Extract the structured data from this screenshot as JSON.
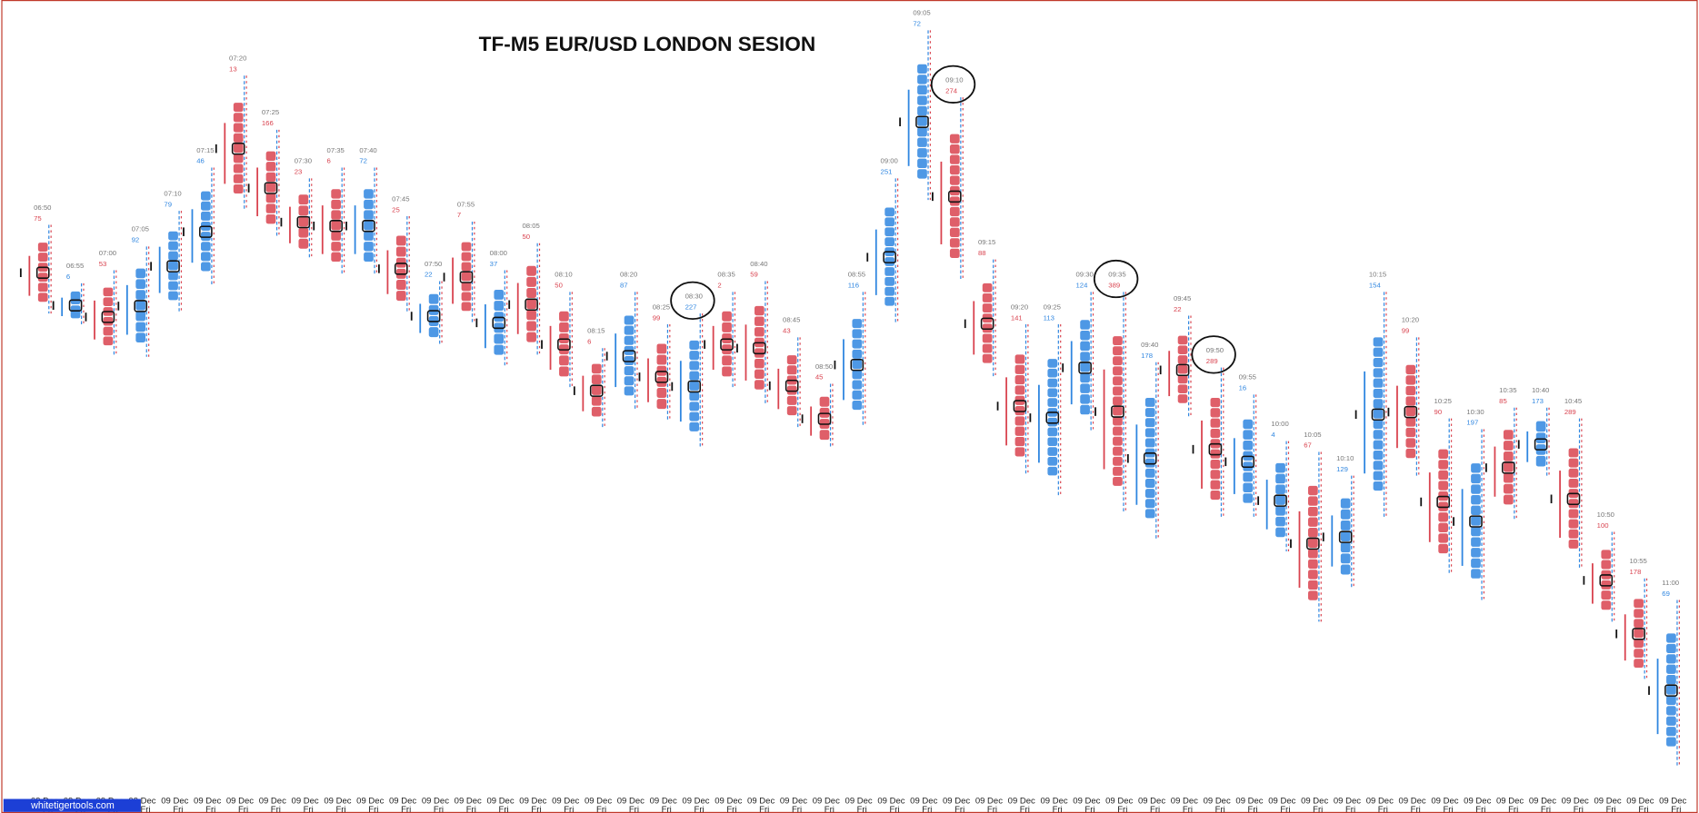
{
  "chart_data": {
    "type": "footprint",
    "title": "TF-M5 EUR/USD LONDON SESION",
    "watermark": "whitetigertools.com",
    "ylim": [
      0,
      720
    ],
    "bars": [
      {
        "time": "06:50",
        "delta": 75,
        "color": "#d9434f",
        "high": 512,
        "low": 430,
        "date": "09 Dec",
        "day": "Fri"
      },
      {
        "time": "06:55",
        "delta": 6,
        "color": "#2f86e0",
        "high": 458,
        "low": 420,
        "date": "09 Dec",
        "day": "Fri"
      },
      {
        "time": "07:00",
        "delta": 53,
        "color": "#d9434f",
        "high": 470,
        "low": 390,
        "date": "09 Dec",
        "day": "Fri"
      },
      {
        "time": "07:05",
        "delta": 92,
        "color": "#2f86e0",
        "high": 492,
        "low": 390,
        "date": "09 Dec",
        "day": "Fri"
      },
      {
        "time": "07:10",
        "delta": 79,
        "color": "#2f86e0",
        "high": 525,
        "low": 430,
        "date": "09 Dec",
        "day": "Fri"
      },
      {
        "time": "07:15",
        "delta": 46,
        "color": "#2f86e0",
        "high": 565,
        "low": 455,
        "date": "09 Dec",
        "day": "Fri"
      },
      {
        "time": "07:20",
        "delta": 13,
        "color": "#d9434f",
        "high": 650,
        "low": 525,
        "date": "09 Dec",
        "day": "Fri"
      },
      {
        "time": "07:25",
        "delta": 166,
        "color": "#d9434f",
        "high": 600,
        "low": 500,
        "date": "09 Dec",
        "day": "Fri"
      },
      {
        "time": "07:30",
        "delta": 23,
        "color": "#d9434f",
        "high": 555,
        "low": 480,
        "date": "09 Dec",
        "day": "Fri"
      },
      {
        "time": "07:35",
        "delta": 6,
        "color": "#d9434f",
        "high": 565,
        "low": 465,
        "date": "09 Dec",
        "day": "Fri"
      },
      {
        "time": "07:40",
        "delta": 72,
        "color": "#2f86e0",
        "high": 565,
        "low": 465,
        "date": "09 Dec",
        "day": "Fri"
      },
      {
        "time": "07:45",
        "delta": 25,
        "color": "#d9434f",
        "high": 520,
        "low": 430,
        "date": "09 Dec",
        "day": "Fri"
      },
      {
        "time": "07:50",
        "delta": 22,
        "color": "#2f86e0",
        "high": 460,
        "low": 400,
        "date": "09 Dec",
        "day": "Fri"
      },
      {
        "time": "07:55",
        "delta": 7,
        "color": "#d9434f",
        "high": 515,
        "low": 420,
        "date": "09 Dec",
        "day": "Fri"
      },
      {
        "time": "08:00",
        "delta": 37,
        "color": "#2f86e0",
        "high": 470,
        "low": 380,
        "date": "09 Dec",
        "day": "Fri"
      },
      {
        "time": "08:05",
        "delta": 50,
        "color": "#d9434f",
        "high": 495,
        "low": 390,
        "date": "09 Dec",
        "day": "Fri"
      },
      {
        "time": "08:10",
        "delta": 50,
        "color": "#d9434f",
        "high": 450,
        "low": 360,
        "date": "09 Dec",
        "day": "Fri"
      },
      {
        "time": "08:15",
        "delta": 6,
        "color": "#d9434f",
        "high": 398,
        "low": 325,
        "date": "09 Dec",
        "day": "Fri"
      },
      {
        "time": "08:20",
        "delta": 87,
        "color": "#2f86e0",
        "high": 450,
        "low": 340,
        "date": "09 Dec",
        "day": "Fri"
      },
      {
        "time": "08:25",
        "delta": 99,
        "color": "#d9434f",
        "high": 420,
        "low": 330,
        "date": "09 Dec",
        "day": "Fri"
      },
      {
        "time": "08:30",
        "delta": 227,
        "color": "#2f86e0",
        "high": 430,
        "low": 305,
        "date": "09 Dec",
        "day": "Fri",
        "circled": true
      },
      {
        "time": "08:35",
        "delta": 2,
        "color": "#d9434f",
        "high": 450,
        "low": 360,
        "date": "09 Dec",
        "day": "Fri"
      },
      {
        "time": "08:40",
        "delta": 59,
        "color": "#d9434f",
        "high": 460,
        "low": 345,
        "date": "09 Dec",
        "day": "Fri"
      },
      {
        "time": "08:45",
        "delta": 43,
        "color": "#d9434f",
        "high": 408,
        "low": 325,
        "date": "09 Dec",
        "day": "Fri"
      },
      {
        "time": "08:50",
        "delta": 45,
        "color": "#d9434f",
        "high": 365,
        "low": 305,
        "date": "09 Dec",
        "day": "Fri"
      },
      {
        "time": "08:55",
        "delta": 116,
        "color": "#2f86e0",
        "high": 450,
        "low": 325,
        "date": "09 Dec",
        "day": "Fri"
      },
      {
        "time": "09:00",
        "delta": 251,
        "color": "#2f86e0",
        "high": 555,
        "low": 420,
        "date": "09 Dec",
        "day": "Fri"
      },
      {
        "time": "09:05",
        "delta": 72,
        "color": "#2f86e0",
        "high": 692,
        "low": 535,
        "date": "09 Dec",
        "day": "Fri"
      },
      {
        "time": "09:10",
        "delta": 274,
        "color": "#d9434f",
        "high": 630,
        "low": 460,
        "date": "09 Dec",
        "day": "Fri",
        "circled": true
      },
      {
        "time": "09:15",
        "delta": 88,
        "color": "#d9434f",
        "high": 480,
        "low": 370,
        "date": "09 Dec",
        "day": "Fri"
      },
      {
        "time": "09:20",
        "delta": 141,
        "color": "#d9434f",
        "high": 420,
        "low": 280,
        "date": "09 Dec",
        "day": "Fri"
      },
      {
        "time": "09:25",
        "delta": 113,
        "color": "#2f86e0",
        "high": 420,
        "low": 260,
        "date": "09 Dec",
        "day": "Fri"
      },
      {
        "time": "09:30",
        "delta": 124,
        "color": "#2f86e0",
        "high": 450,
        "low": 320,
        "date": "09 Dec",
        "day": "Fri"
      },
      {
        "time": "09:35",
        "delta": 389,
        "color": "#d9434f",
        "high": 450,
        "low": 245,
        "date": "09 Dec",
        "day": "Fri",
        "circled": true
      },
      {
        "time": "09:40",
        "delta": 178,
        "color": "#2f86e0",
        "high": 385,
        "low": 220,
        "date": "09 Dec",
        "day": "Fri"
      },
      {
        "time": "09:45",
        "delta": 22,
        "color": "#d9434f",
        "high": 428,
        "low": 335,
        "date": "09 Dec",
        "day": "Fri"
      },
      {
        "time": "09:50",
        "delta": 289,
        "color": "#d9434f",
        "high": 380,
        "low": 240,
        "date": "09 Dec",
        "day": "Fri",
        "circled": true
      },
      {
        "time": "09:55",
        "delta": 16,
        "color": "#2f86e0",
        "high": 355,
        "low": 240,
        "date": "09 Dec",
        "day": "Fri"
      },
      {
        "time": "10:00",
        "delta": 4,
        "color": "#2f86e0",
        "high": 312,
        "low": 210,
        "date": "09 Dec",
        "day": "Fri"
      },
      {
        "time": "10:05",
        "delta": 67,
        "color": "#d9434f",
        "high": 302,
        "low": 145,
        "date": "09 Dec",
        "day": "Fri"
      },
      {
        "time": "10:10",
        "delta": 129,
        "color": "#2f86e0",
        "high": 280,
        "low": 175,
        "date": "09 Dec",
        "day": "Fri"
      },
      {
        "time": "10:15",
        "delta": 154,
        "color": "#2f86e0",
        "high": 450,
        "low": 240,
        "date": "09 Dec",
        "day": "Fri"
      },
      {
        "time": "10:20",
        "delta": 99,
        "color": "#d9434f",
        "high": 408,
        "low": 280,
        "date": "09 Dec",
        "day": "Fri"
      },
      {
        "time": "10:25",
        "delta": 90,
        "color": "#d9434f",
        "high": 333,
        "low": 190,
        "date": "09 Dec",
        "day": "Fri"
      },
      {
        "time": "10:30",
        "delta": 197,
        "color": "#2f86e0",
        "high": 323,
        "low": 165,
        "date": "09 Dec",
        "day": "Fri"
      },
      {
        "time": "10:35",
        "delta": 85,
        "color": "#d9434f",
        "high": 343,
        "low": 240,
        "date": "09 Dec",
        "day": "Fri"
      },
      {
        "time": "10:40",
        "delta": 173,
        "color": "#2f86e0",
        "high": 343,
        "low": 280,
        "date": "09 Dec",
        "day": "Fri"
      },
      {
        "time": "10:45",
        "delta": 289,
        "color": "#d9434f",
        "high": 333,
        "low": 195,
        "date": "09 Dec",
        "day": "Fri"
      },
      {
        "time": "10:50",
        "delta": 100,
        "color": "#d9434f",
        "high": 228,
        "low": 145,
        "date": "09 Dec",
        "day": "Fri"
      },
      {
        "time": "10:55",
        "delta": 178,
        "color": "#d9434f",
        "high": 185,
        "low": 90,
        "date": "09 Dec",
        "day": "Fri"
      },
      {
        "time": "11:00",
        "delta": 69,
        "color": "#2f86e0",
        "high": 165,
        "low": 10,
        "date": "09 Dec",
        "day": "Fri"
      }
    ]
  }
}
